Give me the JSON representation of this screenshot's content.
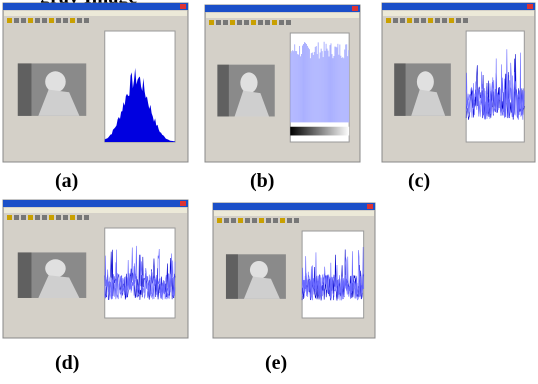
{
  "heading": "gray Image",
  "panels": [
    {
      "label": "(a)"
    },
    {
      "label": "(b)"
    },
    {
      "label": "(c)"
    },
    {
      "label": "(d)"
    },
    {
      "label": "(e)"
    }
  ]
}
